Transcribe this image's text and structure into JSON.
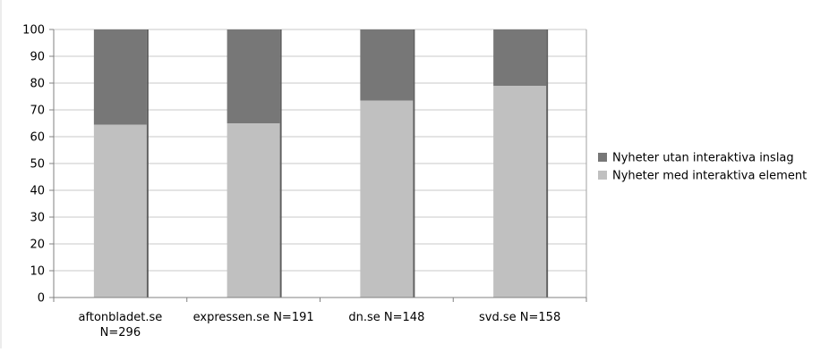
{
  "chart_data": {
    "type": "bar",
    "stacked": true,
    "percent_stacked": true,
    "categories": [
      [
        "aftonbladet.se",
        "N=296"
      ],
      [
        "expressen.se N=191"
      ],
      [
        "dn.se N=148"
      ],
      [
        "svd.se N=158"
      ]
    ],
    "series": [
      {
        "name": "Nyheter med interaktiva element",
        "values": [
          64.5,
          65,
          73.5,
          79
        ],
        "color": "#c0c0c0"
      },
      {
        "name": "Nyheter utan interaktiva inslag",
        "values": [
          35.5,
          35,
          26.5,
          21
        ],
        "color": "#777777"
      }
    ],
    "ylim": [
      0,
      100
    ],
    "yticks": [
      0,
      10,
      20,
      30,
      40,
      50,
      60,
      70,
      80,
      90,
      100
    ],
    "grid": true,
    "legend_position": "right",
    "legend_order": [
      "Nyheter utan interaktiva inslag",
      "Nyheter med interaktiva element"
    ],
    "title": "",
    "xlabel": "",
    "ylabel": ""
  }
}
